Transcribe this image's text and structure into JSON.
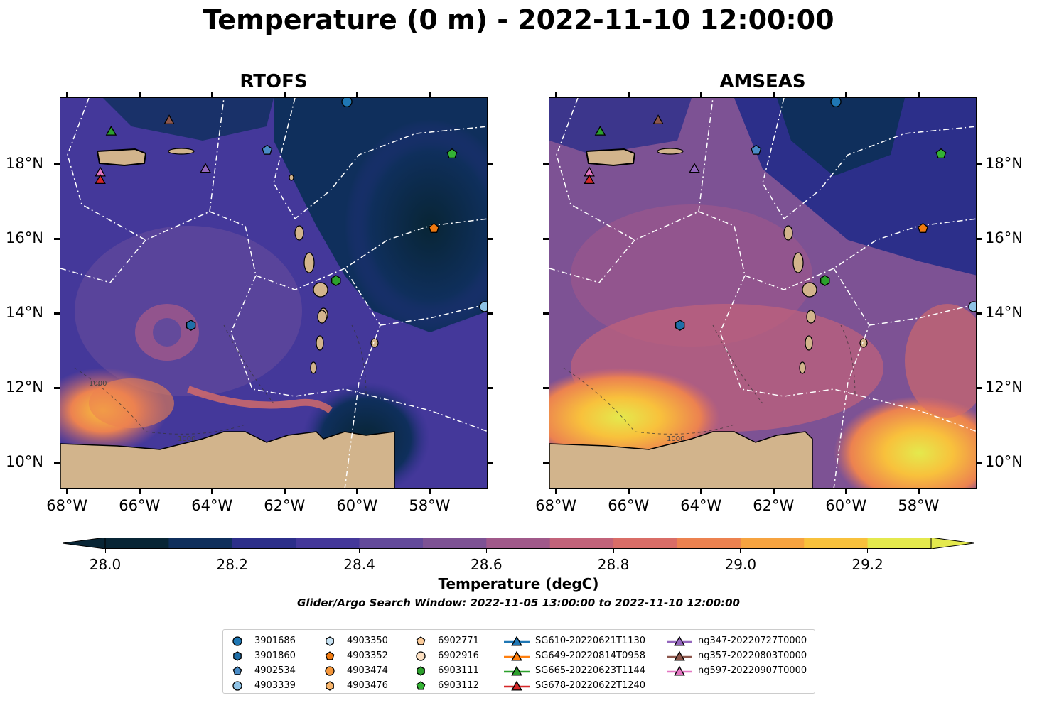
{
  "title": "Temperature (0 m) - 2022-11-10 12:00:00",
  "panels": [
    {
      "title": "RTOFS"
    },
    {
      "title": "AMSEAS"
    }
  ],
  "lon_ticks": [
    "68°W",
    "66°W",
    "64°W",
    "62°W",
    "60°W",
    "58°W"
  ],
  "lat_ticks": [
    "18°N",
    "16°N",
    "14°N",
    "12°N",
    "10°N"
  ],
  "colorbar": {
    "title": "Temperature (degC)",
    "tick_labels": [
      "28.0",
      "28.2",
      "28.4",
      "28.6",
      "28.8",
      "29.0",
      "29.2"
    ],
    "min": 28.0,
    "max": 29.3,
    "step": 0.1,
    "extend": "both",
    "colors": [
      "#082535",
      "#0f2f5c",
      "#2c2f8a",
      "#44389a",
      "#634a9b",
      "#7d5294",
      "#a0598a",
      "#c2637a",
      "#d96d67",
      "#ec8250",
      "#f6a340",
      "#f8c13c",
      "#e4e94d"
    ],
    "under_color": "#082535",
    "over_color": "#e4e94d"
  },
  "contour_labels": [
    "1000",
    "1000",
    "1000"
  ],
  "search_window": "Glider/Argo Search Window: 2022-11-05 13:00:00 to 2022-11-10 12:00:00",
  "legend": {
    "columns": [
      [
        {
          "label": "3901686",
          "marker": "circle",
          "color": "#1f77b4"
        },
        {
          "label": "3901860",
          "marker": "hexagon",
          "color": "#1f6fa8"
        },
        {
          "label": "4902534",
          "marker": "pentagon",
          "color": "#4a8cc7"
        },
        {
          "label": "4903339",
          "marker": "circle",
          "color": "#8fc3e6"
        }
      ],
      [
        {
          "label": "4903350",
          "marker": "hexagon",
          "color": "#c7e2f3"
        },
        {
          "label": "4903352",
          "marker": "pentagon",
          "color": "#f07a10"
        },
        {
          "label": "4903474",
          "marker": "circle",
          "color": "#f4963a"
        },
        {
          "label": "4903476",
          "marker": "hexagon",
          "color": "#f8b56b"
        }
      ],
      [
        {
          "label": "6902771",
          "marker": "pentagon",
          "color": "#fbcb99"
        },
        {
          "label": "6902916",
          "marker": "circle",
          "color": "#fde0c2"
        },
        {
          "label": "6903111",
          "marker": "hexagon",
          "color": "#2ca02c"
        },
        {
          "label": "6903112",
          "marker": "pentagon",
          "color": "#34b234"
        }
      ],
      [
        {
          "label": "SG610-20220621T1130",
          "marker": "triangle",
          "color": "#1f77b4"
        },
        {
          "label": "SG649-20220814T0958",
          "marker": "triangle",
          "color": "#ff7f0e"
        },
        {
          "label": "SG665-20220623T1144",
          "marker": "triangle",
          "color": "#2ca02c"
        },
        {
          "label": "SG678-20220622T1240",
          "marker": "triangle",
          "color": "#d62728"
        }
      ],
      [
        {
          "label": "ng347-20220727T0000",
          "marker": "triangle",
          "color": "#9467bd"
        },
        {
          "label": "ng357-20220803T0000",
          "marker": "triangle",
          "color": "#8c564b"
        },
        {
          "label": "ng597-20220907T0000",
          "marker": "triangle",
          "color": "#e377c2"
        }
      ]
    ]
  },
  "markers": [
    {
      "id": "3901686",
      "lon": -60.3,
      "lat": 19.7
    },
    {
      "id": "4902534",
      "lon": -62.5,
      "lat": 18.4
    },
    {
      "id": "6903112",
      "lon": -57.4,
      "lat": 18.3
    },
    {
      "id": "4903352",
      "lon": -57.9,
      "lat": 16.3
    },
    {
      "id": "6903111",
      "lon": -60.6,
      "lat": 14.9
    },
    {
      "id": "3901860",
      "lon": -64.6,
      "lat": 13.7
    },
    {
      "id": "4903339",
      "lon": -56.5,
      "lat": 14.2
    },
    {
      "id": "SG665-20220623T1144",
      "lon": -66.8,
      "lat": 18.9
    },
    {
      "id": "ng357-20220803T0000",
      "lon": -65.2,
      "lat": 19.2
    },
    {
      "id": "ng347-20220727T0000",
      "lon": -64.2,
      "lat": 17.9
    },
    {
      "id": "ng597-20220907T0000",
      "lon": -67.1,
      "lat": 17.8
    },
    {
      "id": "SG678-20220622T1240",
      "lon": -67.1,
      "lat": 17.6
    }
  ]
}
